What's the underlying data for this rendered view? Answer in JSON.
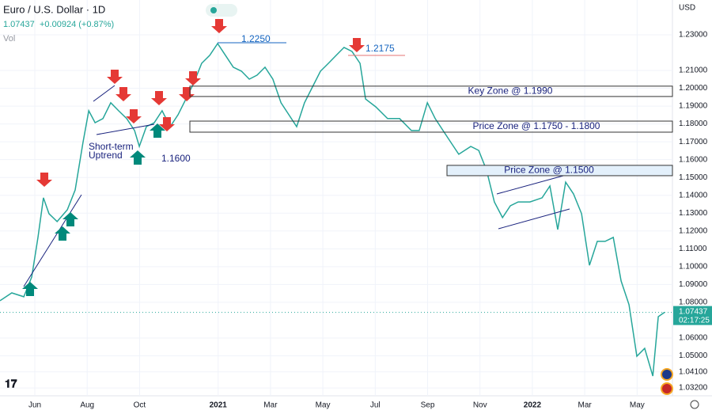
{
  "header": {
    "symbol": "Euro / U.S. Dollar · 1D",
    "price": "1.07437",
    "change": "+0.00924 (+0.87%)",
    "vol": "Vol",
    "currency": "USD"
  },
  "chart_data": {
    "type": "line",
    "color": "#26a69a",
    "x": [
      3.67,
      4.12,
      4.58,
      4.88,
      5.12,
      5.33,
      5.54,
      5.85,
      6.24,
      6.54,
      6.84,
      7.06,
      7.3,
      7.6,
      7.9,
      8.2,
      8.51,
      8.81,
      8.99,
      9.26,
      9.56,
      9.86,
      10.17,
      10.47,
      10.77,
      11.07,
      11.37,
      11.68,
      11.98,
      12.28,
      12.58,
      12.89,
      13.19,
      13.49,
      13.79,
      14.09,
      14.4,
      14.7,
      15.0,
      15.3,
      15.6,
      15.91,
      16.21,
      16.51,
      16.81,
      17.11,
      17.42,
      17.63,
      18.02,
      18.47,
      18.93,
      19.38,
      19.68,
      19.99,
      20.29,
      20.59,
      20.89,
      21.19,
      21.65,
      21.95,
      22.25,
      22.55,
      22.86,
      23.16,
      23.46,
      23.91,
      24.37,
      24.67,
      24.97,
      25.27,
      25.57,
      25.88,
      26.18,
      26.48,
      26.78,
      27.09,
      27.39,
      27.69,
      27.99,
      28.29,
      28.6,
      28.81,
      29.05
    ],
    "values": [
      1.0809,
      1.0853,
      1.0831,
      1.0942,
      1.1164,
      1.1386,
      1.1297,
      1.1253,
      1.1319,
      1.143,
      1.1696,
      1.1874,
      1.1807,
      1.183,
      1.1919,
      1.1874,
      1.183,
      1.1763,
      1.1674,
      1.1785,
      1.1807,
      1.1874,
      1.1785,
      1.1852,
      1.194,
      1.2029,
      1.214,
      1.2185,
      1.2251,
      1.2185,
      1.2118,
      1.2096,
      1.2051,
      1.2074,
      1.2118,
      1.2051,
      1.1919,
      1.1852,
      1.1785,
      1.1919,
      1.2007,
      1.2096,
      1.214,
      1.2185,
      1.2229,
      1.2207,
      1.214,
      1.194,
      1.1896,
      1.183,
      1.183,
      1.1763,
      1.1763,
      1.1919,
      1.183,
      1.1763,
      1.1696,
      1.163,
      1.1674,
      1.1652,
      1.1541,
      1.1363,
      1.1275,
      1.1341,
      1.1363,
      1.1363,
      1.1386,
      1.1452,
      1.1208,
      1.1474,
      1.1408,
      1.1297,
      1.1008,
      1.1142,
      1.1142,
      1.1164,
      1.092,
      1.0787,
      1.0498,
      1.0542,
      1.0387,
      1.072,
      1.0744
    ],
    "xlim": [
      3.67,
      29.35
    ],
    "ylim": [
      1.0276,
      1.2495
    ],
    "xticks": [
      {
        "value": 5,
        "label": "Jun"
      },
      {
        "value": 7,
        "label": "Aug"
      },
      {
        "value": 9,
        "label": "Oct"
      },
      {
        "value": 12,
        "label": "2021"
      },
      {
        "value": 14,
        "label": "Mar"
      },
      {
        "value": 16,
        "label": "May"
      },
      {
        "value": 18,
        "label": "Jul"
      },
      {
        "value": 20,
        "label": "Sep"
      },
      {
        "value": 22,
        "label": "Nov"
      },
      {
        "value": 24,
        "label": "2022"
      },
      {
        "value": 26,
        "label": "Mar"
      },
      {
        "value": 28,
        "label": "May"
      }
    ],
    "yticks": [
      {
        "value": 1.23,
        "label": "1.23000"
      },
      {
        "value": 1.21,
        "label": "1.21000"
      },
      {
        "value": 1.2,
        "label": "1.20000"
      },
      {
        "value": 1.19,
        "label": "1.19000"
      },
      {
        "value": 1.18,
        "label": "1.18000"
      },
      {
        "value": 1.17,
        "label": "1.17000"
      },
      {
        "value": 1.16,
        "label": "1.16000"
      },
      {
        "value": 1.15,
        "label": "1.15000"
      },
      {
        "value": 1.14,
        "label": "1.14000"
      },
      {
        "value": 1.13,
        "label": "1.13000"
      },
      {
        "value": 1.12,
        "label": "1.12000"
      },
      {
        "value": 1.11,
        "label": "1.11000"
      },
      {
        "value": 1.1,
        "label": "1.10000"
      },
      {
        "value": 1.09,
        "label": "1.09000"
      },
      {
        "value": 1.08,
        "label": "1.08000"
      },
      {
        "value": 1.06,
        "label": "1.06000"
      },
      {
        "value": 1.05,
        "label": "1.05000"
      },
      {
        "value": 1.041,
        "label": "1.04100"
      },
      {
        "value": 1.032,
        "label": "1.03200"
      }
    ],
    "last_price": 1.07437,
    "countdown": "02:17:25",
    "zones": [
      {
        "label": "Key Zone @ 1.1990",
        "high": 1.2012,
        "low": 1.1954
      },
      {
        "label": "Price Zone @ 1.1750 - 1.1800",
        "high": 1.1816,
        "low": 1.1754
      },
      {
        "label": "Price Zone @ 1.1500",
        "high": 1.1568,
        "low": 1.151
      }
    ],
    "annotations": [
      "1.2250",
      "1.2175",
      "Short-term",
      "Uptrend",
      "1.1600"
    ]
  }
}
